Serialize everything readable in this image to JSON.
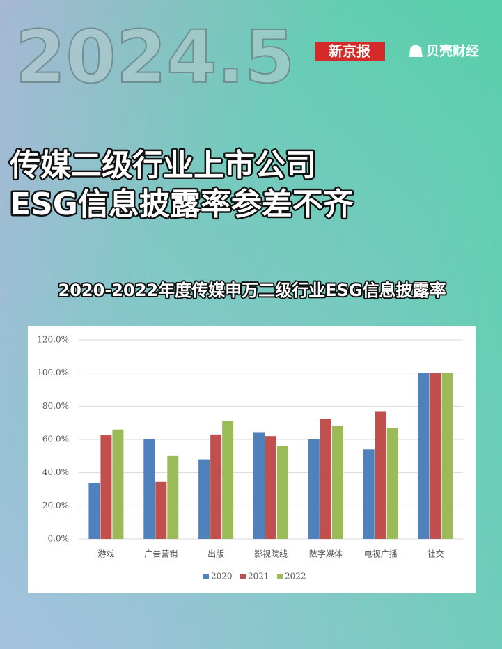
{
  "header": {
    "date_mark": "2024.5",
    "brands": [
      "新京报",
      "贝壳财经"
    ],
    "headline": [
      "传媒二级行业上市公司",
      "ESG信息披露率参差不齐"
    ]
  },
  "chart_data": {
    "type": "bar",
    "title": "2020-2022年度传媒申万二级行业ESG信息披露率",
    "categories": [
      "游戏",
      "广告营销",
      "出版",
      "影视院线",
      "数字媒体",
      "电视广播",
      "社交"
    ],
    "series": [
      {
        "name": "2020",
        "color": "#4f81bd",
        "values": [
          34,
          60,
          48,
          64,
          60,
          54,
          100
        ]
      },
      {
        "name": "2021",
        "color": "#c0504d",
        "values": [
          62.5,
          34.5,
          63,
          62,
          72.5,
          77,
          100
        ]
      },
      {
        "name": "2022",
        "color": "#9bbb59",
        "values": [
          66,
          50,
          71,
          56,
          68,
          67,
          100
        ]
      }
    ],
    "ylim": [
      0,
      120
    ],
    "yticks": [
      {
        "value": 0,
        "label": "0.0%"
      },
      {
        "value": 20,
        "label": "20.0%"
      },
      {
        "value": 40,
        "label": "40.0%"
      },
      {
        "value": 60,
        "label": "60.0%"
      },
      {
        "value": 80,
        "label": "80.0%"
      },
      {
        "value": 100,
        "label": "100.0%"
      },
      {
        "value": 120,
        "label": "120.0%"
      }
    ],
    "grid": true,
    "legend": "bottom"
  }
}
